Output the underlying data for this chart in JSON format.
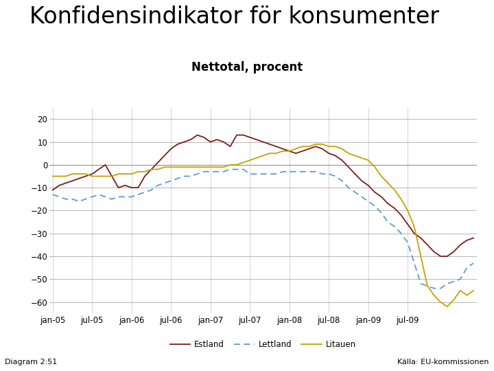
{
  "title": "Konfidensindikator för konsumenter",
  "subtitle": "Nettotal, procent",
  "footer_left": "Diagram 2:51",
  "footer_right": "Källa: EU-kommissionen",
  "background_color": "#ffffff",
  "plot_bg_color": "#ffffff",
  "title_fontsize": 24,
  "subtitle_fontsize": 12,
  "ylim": [
    -65,
    25
  ],
  "yticks": [
    -60,
    -50,
    -40,
    -30,
    -20,
    -10,
    0,
    10,
    20
  ],
  "x_labels": [
    "jan-05",
    "jul-05",
    "jan-06",
    "jul-06",
    "jan-07",
    "jul-07",
    "jan-08",
    "jul-08",
    "jan-09",
    "jul-09"
  ],
  "bar_color_blue": "#1A3F7A",
  "legend_items": [
    "Estland",
    "Lettland",
    "Litauen"
  ],
  "estland_color": "#7B1C1C",
  "lettland_color": "#5B9BD5",
  "litauen_color": "#C8A000",
  "estland": [
    -11,
    -9,
    -8,
    -7,
    -6,
    -5,
    -4,
    -2,
    0,
    -5,
    -10,
    -9,
    -10,
    -10,
    -5,
    -2,
    1,
    4,
    7,
    9,
    10,
    11,
    13,
    12,
    10,
    11,
    10,
    8,
    13,
    13,
    12,
    11,
    10,
    9,
    8,
    7,
    6,
    5,
    6,
    7,
    8,
    7,
    5,
    4,
    2,
    -1,
    -4,
    -7,
    -9,
    -12,
    -14,
    -17,
    -19,
    -22,
    -26,
    -30,
    -32,
    -35,
    -38,
    -40,
    -40,
    -38,
    -35,
    -33,
    -32
  ],
  "lettland": [
    -13,
    -14,
    -15,
    -15,
    -16,
    -15,
    -14,
    -13,
    -14,
    -15,
    -14,
    -14,
    -14,
    -13,
    -12,
    -11,
    -9,
    -8,
    -7,
    -6,
    -5,
    -5,
    -4,
    -3,
    -3,
    -3,
    -3,
    -2,
    -2,
    -2,
    -4,
    -4,
    -4,
    -4,
    -4,
    -3,
    -3,
    -3,
    -3,
    -3,
    -3,
    -4,
    -4,
    -5,
    -7,
    -10,
    -12,
    -14,
    -16,
    -18,
    -21,
    -25,
    -27,
    -30,
    -34,
    -43,
    -52,
    -53,
    -54,
    -54,
    -52,
    -51,
    -50,
    -45,
    -43
  ],
  "litauen": [
    -5,
    -5,
    -5,
    -4,
    -4,
    -4,
    -5,
    -5,
    -5,
    -5,
    -4,
    -4,
    -4,
    -3,
    -3,
    -2,
    -2,
    -1,
    -1,
    -1,
    -1,
    -1,
    -1,
    -1,
    -1,
    -1,
    -1,
    0,
    0,
    1,
    2,
    3,
    4,
    5,
    5,
    6,
    6,
    7,
    8,
    8,
    9,
    9,
    8,
    8,
    7,
    5,
    4,
    3,
    2,
    -1,
    -5,
    -8,
    -11,
    -15,
    -20,
    -27,
    -40,
    -53,
    -57,
    -60,
    -62,
    -59,
    -55,
    -57,
    -55
  ],
  "n_points": 65,
  "x_tick_positions": [
    0,
    6,
    12,
    18,
    24,
    30,
    36,
    42,
    48,
    54
  ]
}
